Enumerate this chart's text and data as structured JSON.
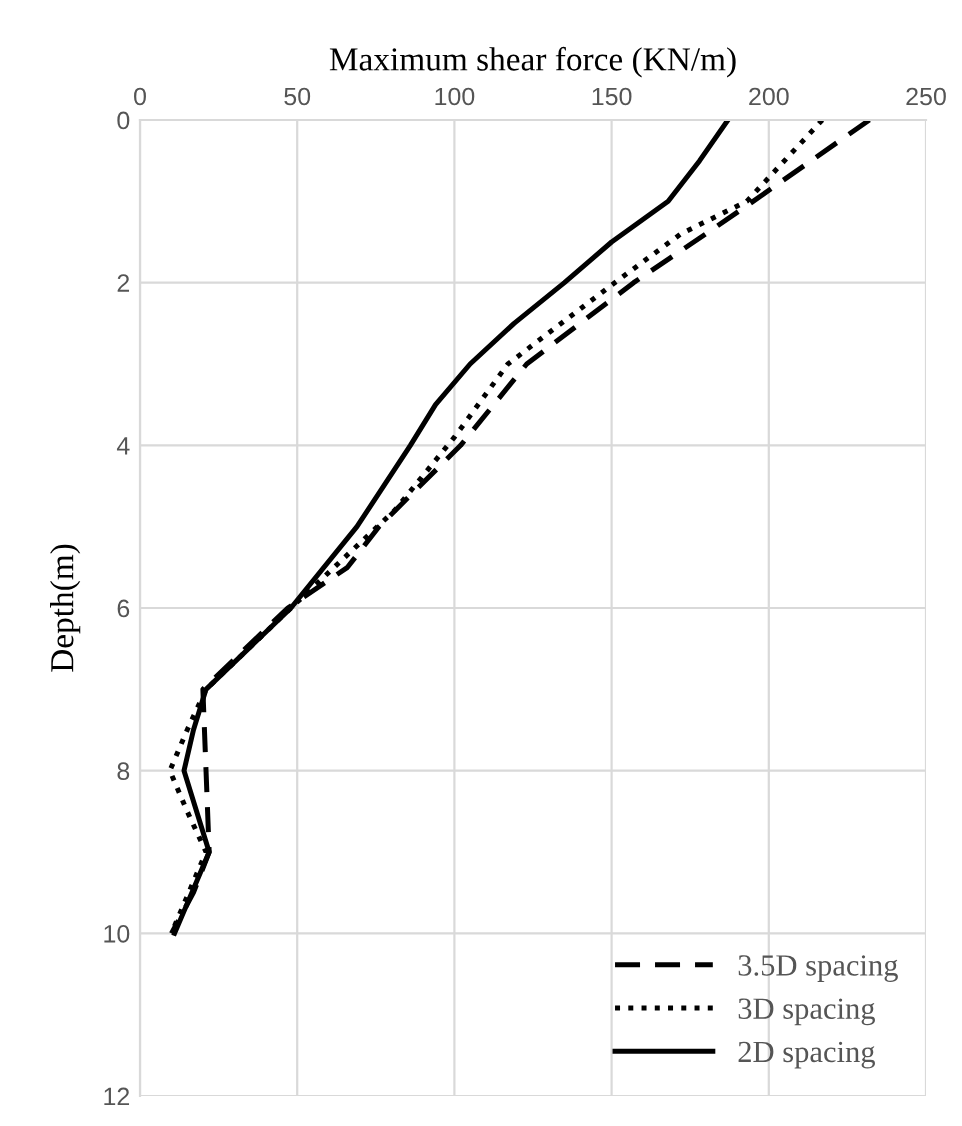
{
  "chart_data": {
    "type": "line",
    "xlabel": "Maximum shear force (KN/m)",
    "ylabel": "Depth(m)",
    "xlim": [
      0,
      250
    ],
    "xticks": [
      0,
      50,
      100,
      150,
      200,
      250
    ],
    "ylim": [
      12,
      0
    ],
    "yticks": [
      0,
      2,
      4,
      6,
      8,
      10,
      12
    ],
    "grid": true,
    "legend": "bottom right",
    "marker": "none",
    "series": [
      {
        "name": "3.5D spacing",
        "color": "#000000",
        "line_style": "dashed",
        "x": [
          232,
          195,
          180,
          157,
          123,
          102,
          76,
          66,
          47,
          20,
          21,
          22,
          17,
          10
        ],
        "values": [
          0,
          1,
          1.4,
          2,
          3,
          4,
          5,
          5.5,
          6,
          7,
          8,
          9,
          9.5,
          10
        ]
      },
      {
        "name": "3D spacing",
        "color": "#000000",
        "line_style": "dotted",
        "x": [
          217,
          193,
          172,
          151,
          117,
          100,
          81,
          48,
          21,
          15,
          9.5,
          15,
          21,
          10
        ],
        "values": [
          0,
          1,
          1.4,
          2,
          3,
          3.9,
          4.8,
          6,
          7,
          7.5,
          8,
          8.5,
          9,
          10
        ]
      },
      {
        "name": "2D spacing",
        "color": "#000000",
        "line_style": "solid",
        "x": [
          187,
          178,
          168,
          150,
          135,
          119,
          105,
          94,
          86,
          69,
          48,
          21,
          17,
          14,
          22,
          11
        ],
        "values": [
          0,
          0.5,
          1,
          1.5,
          2,
          2.5,
          3,
          3.5,
          4,
          5,
          6,
          7,
          7.5,
          8,
          9,
          10
        ]
      }
    ]
  }
}
